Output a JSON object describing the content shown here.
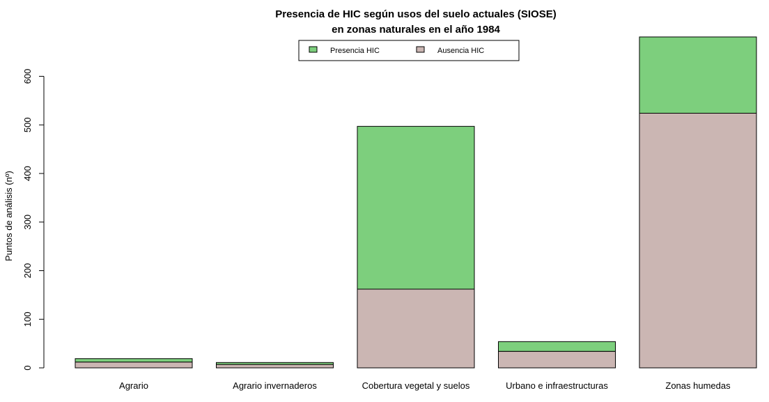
{
  "chart_data": {
    "type": "bar",
    "stacked": true,
    "title_line1": "Presencia de HIC según usos del suelo actuales (SIOSE)",
    "title_line2": "en zonas naturales en el año 1984",
    "xlabel": "",
    "ylabel": "Puntos de análisis (nº)",
    "ylim": [
      0,
      680
    ],
    "yticks": [
      0,
      100,
      200,
      300,
      400,
      500,
      600
    ],
    "grid": false,
    "legend_position": "top-center",
    "categories": [
      "Agrario",
      "Agrario invernaderos",
      "Cobertura vegetal y suelos",
      "Urbano e infraestructuras",
      "Zonas humedas"
    ],
    "series": [
      {
        "name": "Ausencia HIC",
        "color": "#cbb6b3",
        "values": [
          12,
          7,
          162,
          34,
          524
        ]
      },
      {
        "name": "Presencia HIC",
        "color": "#7dcf7d",
        "values": [
          7,
          4,
          335,
          20,
          157
        ]
      }
    ],
    "legend": [
      {
        "label": "Presencia HIC",
        "color": "#7dcf7d"
      },
      {
        "label": "Ausencia HIC",
        "color": "#cbb6b3"
      }
    ]
  }
}
